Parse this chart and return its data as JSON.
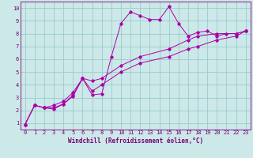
{
  "xlabel": "Windchill (Refroidissement éolien,°C)",
  "bg_color": "#cce8e8",
  "grid_color": "#99cccc",
  "line_color": "#aa00aa",
  "spine_color": "#770077",
  "xlim": [
    -0.5,
    23.5
  ],
  "ylim": [
    0.5,
    10.5
  ],
  "xticks": [
    0,
    1,
    2,
    3,
    4,
    5,
    6,
    7,
    8,
    9,
    10,
    11,
    12,
    13,
    14,
    15,
    16,
    17,
    18,
    19,
    20,
    21,
    22,
    23
  ],
  "yticks": [
    1,
    2,
    3,
    4,
    5,
    6,
    7,
    8,
    9,
    10
  ],
  "line1_x": [
    0,
    1,
    2,
    3,
    4,
    5,
    6,
    7,
    8,
    9,
    10,
    11,
    12,
    13,
    14,
    15,
    16,
    17,
    18,
    19,
    20,
    21,
    22,
    23
  ],
  "line1_y": [
    0.9,
    2.4,
    2.2,
    2.1,
    2.5,
    3.2,
    4.5,
    3.2,
    3.3,
    6.2,
    8.8,
    9.7,
    9.4,
    9.1,
    9.1,
    10.1,
    8.8,
    7.8,
    8.1,
    8.2,
    7.8,
    8.0,
    8.0,
    8.2
  ],
  "line2_x": [
    0,
    1,
    2,
    3,
    4,
    5,
    6,
    7,
    8,
    10,
    12,
    15,
    17,
    18,
    20,
    22,
    23
  ],
  "line2_y": [
    0.9,
    2.4,
    2.2,
    2.4,
    2.7,
    3.4,
    4.5,
    4.3,
    4.5,
    5.5,
    6.2,
    6.8,
    7.5,
    7.8,
    8.0,
    8.0,
    8.2
  ],
  "line3_x": [
    0,
    1,
    2,
    3,
    4,
    5,
    6,
    7,
    8,
    10,
    12,
    15,
    17,
    18,
    20,
    22,
    23
  ],
  "line3_y": [
    0.9,
    2.4,
    2.2,
    2.2,
    2.5,
    3.1,
    4.5,
    3.5,
    4.0,
    5.0,
    5.7,
    6.2,
    6.8,
    7.0,
    7.5,
    7.8,
    8.2
  ],
  "font_color": "#770077",
  "axis_label_fontsize": 5.5,
  "tick_fontsize": 5.0,
  "marker_size": 1.8,
  "line_width": 0.7
}
